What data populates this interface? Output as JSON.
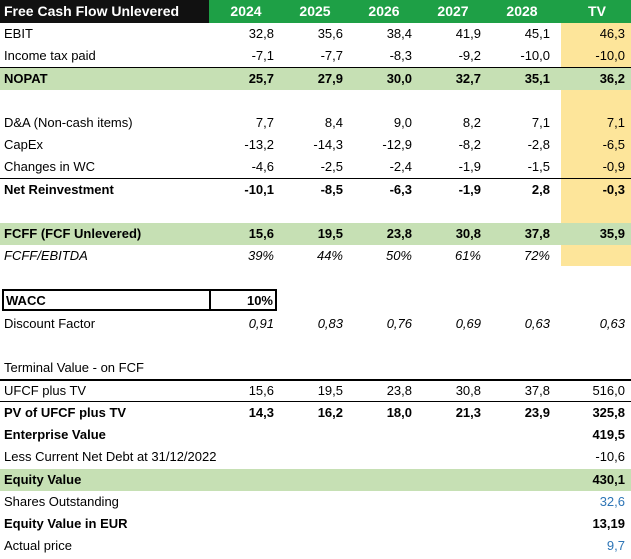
{
  "header": {
    "title": "Free Cash Flow Unlevered",
    "years": [
      "2024",
      "2025",
      "2026",
      "2027",
      "2028",
      "TV"
    ]
  },
  "ebit": {
    "label": "EBIT",
    "values": [
      "32,8",
      "35,6",
      "38,4",
      "41,9",
      "45,1",
      "46,3"
    ]
  },
  "tax": {
    "label": "Income tax paid",
    "values": [
      "-7,1",
      "-7,7",
      "-8,3",
      "-9,2",
      "-10,0",
      "-10,0"
    ]
  },
  "nopat": {
    "label": "NOPAT",
    "values": [
      "25,7",
      "27,9",
      "30,0",
      "32,7",
      "35,1",
      "36,2"
    ]
  },
  "da": {
    "label": "D&A (Non-cash items)",
    "values": [
      "7,7",
      "8,4",
      "9,0",
      "8,2",
      "7,1",
      "7,1"
    ]
  },
  "capex": {
    "label": "CapEx",
    "values": [
      "-13,2",
      "-14,3",
      "-12,9",
      "-8,2",
      "-2,8",
      "-6,5"
    ]
  },
  "wc": {
    "label": "Changes in WC",
    "values": [
      "-4,6",
      "-2,5",
      "-2,4",
      "-1,9",
      "-1,5",
      "-0,9"
    ]
  },
  "reinvest": {
    "label": "Net Reinvestment",
    "values": [
      "-10,1",
      "-8,5",
      "-6,3",
      "-1,9",
      "2,8",
      "-0,3"
    ]
  },
  "fcff": {
    "label": "FCFF (FCF Unlevered)",
    "values": [
      "15,6",
      "19,5",
      "23,8",
      "30,8",
      "37,8",
      "35,9"
    ]
  },
  "fcff_ebitda": {
    "label": "FCFF/EBITDA",
    "values": [
      "39%",
      "44%",
      "50%",
      "61%",
      "72%"
    ]
  },
  "wacc": {
    "label": "WACC",
    "value": "10%"
  },
  "discount": {
    "label": "Discount Factor",
    "values": [
      "0,91",
      "0,83",
      "0,76",
      "0,69",
      "0,63",
      "0,63"
    ]
  },
  "terminal": {
    "label": "Terminal Value - on FCF"
  },
  "ufcf_tv": {
    "label": "UFCF plus TV",
    "values": [
      "15,6",
      "19,5",
      "23,8",
      "30,8",
      "37,8",
      "516,0"
    ]
  },
  "pv_ufcf": {
    "label": "PV of UFCF plus TV",
    "values": [
      "14,3",
      "16,2",
      "18,0",
      "21,3",
      "23,9",
      "325,8"
    ]
  },
  "ev": {
    "label": "Enterprise Value",
    "value": "419,5"
  },
  "net_debt": {
    "label": "Less Current Net Debt at 31/12/2022",
    "value": "-10,6"
  },
  "equity": {
    "label": "Equity Value",
    "value": "430,1"
  },
  "shares": {
    "label": "Shares Outstanding",
    "value": "32,6"
  },
  "equity_eur": {
    "label": "Equity Value in EUR",
    "value": "13,19"
  },
  "price": {
    "label": "Actual price",
    "value": "9,7"
  }
}
